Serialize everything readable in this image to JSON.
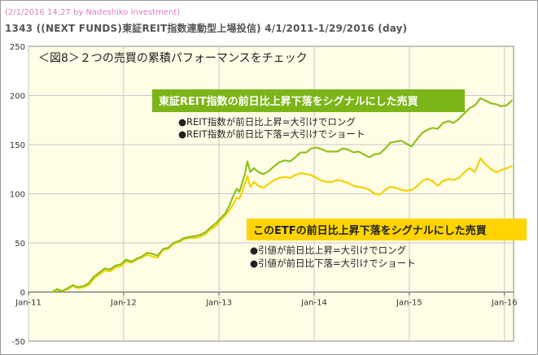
{
  "header": {
    "stamp": "(2/1/2016 14:27 by Nadeshiko Investment)",
    "title": "1343 ((NEXT FUNDS)東証REIT指数連動型上場投信) 4/1/2011-1/29/2016 (day)"
  },
  "chart_data": {
    "type": "line",
    "panel_title": "＜図8＞２つの売買の累積パフォーマンスをチェック",
    "xlabel": "",
    "ylabel": "",
    "ylim": [
      -50,
      250
    ],
    "yticks": [
      "-50",
      "0",
      "50",
      "100",
      "150",
      "200",
      "250"
    ],
    "xticks": [
      "Jan-11",
      "Jan-12",
      "Jan-13",
      "Jan-14",
      "Jan-15",
      "Jan-16"
    ],
    "xlim": [
      "2011-01-01",
      "2016-02-05"
    ],
    "grid": true,
    "colors": {
      "reit_signal": "#8dc21f",
      "etf_signal": "#f5d100",
      "box1_bg": "#7cb518",
      "box2_bg": "#ffd400",
      "plot_bg": "#fffde6"
    },
    "annotations": [
      {
        "title": "東証REIT指数の前日比上昇下落をシグナルにした売買",
        "items": [
          "●REIT指数が前日比上昇=大引けでロング",
          "●REIT指数が前日比下落=大引けでショート"
        ]
      },
      {
        "title": "このETFの前日比上昇下落をシグナルにした売買",
        "items": [
          "●引値が前日比上昇=大引けでロング",
          "●引値が前日比下落=大引けでショート"
        ]
      }
    ],
    "series": [
      {
        "key": "reit_signal",
        "x": [
          "2011-04-01",
          "2011-04-20",
          "2011-05-10",
          "2011-06-01",
          "2011-06-20",
          "2011-07-10",
          "2011-08-01",
          "2011-08-20",
          "2011-09-10",
          "2011-10-01",
          "2011-10-20",
          "2011-11-10",
          "2011-12-01",
          "2011-12-20",
          "2012-01-10",
          "2012-02-01",
          "2012-02-20",
          "2012-03-10",
          "2012-04-01",
          "2012-04-20",
          "2012-05-10",
          "2012-06-01",
          "2012-06-20",
          "2012-07-10",
          "2012-08-01",
          "2012-08-20",
          "2012-09-10",
          "2012-10-01",
          "2012-10-20",
          "2012-11-10",
          "2012-12-01",
          "2012-12-20",
          "2013-01-10",
          "2013-01-25",
          "2013-02-10",
          "2013-02-25",
          "2013-03-10",
          "2013-03-20",
          "2013-04-01",
          "2013-04-10",
          "2013-04-20",
          "2013-05-01",
          "2013-05-15",
          "2013-06-01",
          "2013-06-20",
          "2013-07-10",
          "2013-08-01",
          "2013-08-20",
          "2013-09-10",
          "2013-10-01",
          "2013-10-20",
          "2013-11-10",
          "2013-12-01",
          "2013-12-20",
          "2014-01-10",
          "2014-02-01",
          "2014-02-20",
          "2014-03-10",
          "2014-04-01",
          "2014-04-20",
          "2014-05-10",
          "2014-06-01",
          "2014-06-20",
          "2014-07-10",
          "2014-08-01",
          "2014-08-20",
          "2014-09-10",
          "2014-10-01",
          "2014-10-20",
          "2014-11-10",
          "2014-12-01",
          "2014-12-20",
          "2015-01-10",
          "2015-02-01",
          "2015-02-20",
          "2015-03-10",
          "2015-04-01",
          "2015-04-20",
          "2015-05-10",
          "2015-06-01",
          "2015-06-20",
          "2015-07-10",
          "2015-08-01",
          "2015-08-20",
          "2015-09-10",
          "2015-10-01",
          "2015-10-20",
          "2015-11-10",
          "2015-12-01",
          "2015-12-20",
          "2016-01-10",
          "2016-01-29"
        ],
        "y": [
          0,
          3,
          1,
          4,
          7,
          5,
          6,
          9,
          16,
          20,
          24,
          23,
          27,
          28,
          33,
          31,
          34,
          36,
          40,
          39,
          37,
          44,
          45,
          50,
          52,
          55,
          56,
          57,
          58,
          61,
          66,
          70,
          76,
          80,
          88,
          98,
          105,
          102,
          112,
          120,
          133,
          122,
          126,
          122,
          120,
          123,
          128,
          132,
          134,
          133,
          137,
          142,
          142,
          146,
          147,
          145,
          143,
          143,
          143,
          146,
          145,
          142,
          143,
          140,
          137,
          140,
          141,
          146,
          152,
          153,
          154,
          151,
          148,
          156,
          162,
          165,
          167,
          166,
          172,
          174,
          172,
          176,
          182,
          187,
          190,
          197,
          195,
          192,
          191,
          189,
          190,
          195
        ]
      },
      {
        "key": "etf_signal",
        "x": [
          "2011-04-01",
          "2011-04-20",
          "2011-05-10",
          "2011-06-01",
          "2011-06-20",
          "2011-07-10",
          "2011-08-01",
          "2011-08-20",
          "2011-09-10",
          "2011-10-01",
          "2011-10-20",
          "2011-11-10",
          "2011-12-01",
          "2011-12-20",
          "2012-01-10",
          "2012-02-01",
          "2012-02-20",
          "2012-03-10",
          "2012-04-01",
          "2012-04-20",
          "2012-05-10",
          "2012-06-01",
          "2012-06-20",
          "2012-07-10",
          "2012-08-01",
          "2012-08-20",
          "2012-09-10",
          "2012-10-01",
          "2012-10-20",
          "2012-11-10",
          "2012-12-01",
          "2012-12-20",
          "2013-01-10",
          "2013-01-25",
          "2013-02-10",
          "2013-02-25",
          "2013-03-10",
          "2013-03-20",
          "2013-04-01",
          "2013-04-10",
          "2013-04-20",
          "2013-05-01",
          "2013-05-15",
          "2013-06-01",
          "2013-06-20",
          "2013-07-10",
          "2013-08-01",
          "2013-08-20",
          "2013-09-10",
          "2013-10-01",
          "2013-10-20",
          "2013-11-10",
          "2013-12-01",
          "2013-12-20",
          "2014-01-10",
          "2014-02-01",
          "2014-02-20",
          "2014-03-10",
          "2014-04-01",
          "2014-04-20",
          "2014-05-10",
          "2014-06-01",
          "2014-06-20",
          "2014-07-10",
          "2014-08-01",
          "2014-08-20",
          "2014-09-10",
          "2014-10-01",
          "2014-10-20",
          "2014-11-10",
          "2014-12-01",
          "2014-12-20",
          "2015-01-10",
          "2015-02-01",
          "2015-02-20",
          "2015-03-10",
          "2015-04-01",
          "2015-04-20",
          "2015-05-10",
          "2015-06-01",
          "2015-06-20",
          "2015-07-10",
          "2015-08-01",
          "2015-08-20",
          "2015-09-10",
          "2015-10-01",
          "2015-10-20",
          "2015-11-10",
          "2015-12-01",
          "2015-12-20",
          "2016-01-10",
          "2016-01-29"
        ],
        "y": [
          0,
          2,
          1,
          3,
          6,
          4,
          5,
          7,
          14,
          18,
          22,
          21,
          25,
          26,
          31,
          30,
          33,
          35,
          38,
          36,
          35,
          43,
          44,
          49,
          51,
          54,
          55,
          55,
          56,
          59,
          64,
          67,
          74,
          78,
          83,
          90,
          96,
          95,
          103,
          110,
          118,
          107,
          112,
          108,
          106,
          110,
          114,
          116,
          117,
          116,
          119,
          121,
          120,
          119,
          116,
          113,
          112,
          112,
          114,
          113,
          111,
          108,
          107,
          106,
          104,
          100,
          99,
          104,
          107,
          106,
          104,
          103,
          104,
          108,
          113,
          115,
          113,
          108,
          113,
          115,
          114,
          116,
          122,
          126,
          122,
          136,
          130,
          125,
          122,
          124,
          126,
          128
        ]
      }
    ]
  }
}
